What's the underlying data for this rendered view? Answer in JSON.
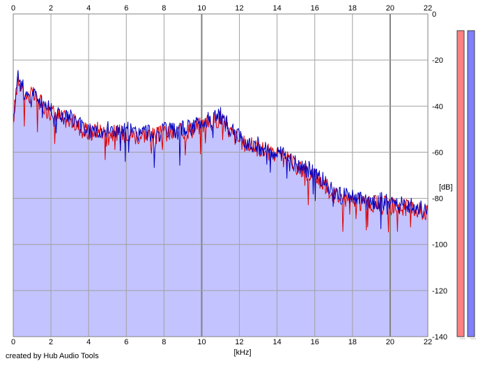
{
  "credit": "created by Hub Audio Tools",
  "chart_data": {
    "type": "area",
    "xlabel": "[kHz]",
    "ylabel": "[dB]",
    "xlim": [
      0,
      22
    ],
    "ylim": [
      -140,
      0
    ],
    "x_ticks": [
      0,
      2,
      4,
      6,
      8,
      10,
      12,
      14,
      16,
      18,
      20,
      22
    ],
    "y_ticks": [
      0,
      -20,
      -40,
      -60,
      -80,
      -100,
      -120,
      -140
    ],
    "grid": true,
    "colors": {
      "fill": "#c3c3ff",
      "series_a": "#e00000",
      "series_b": "#0000c0",
      "grid": "#a0a0a0",
      "grid_strong": "#808080",
      "meter_left": "#ff8080",
      "meter_right": "#8080ff"
    },
    "x": [
      0,
      0.25,
      0.5,
      0.75,
      1,
      1.5,
      2,
      2.5,
      3,
      3.5,
      4,
      4.5,
      5,
      5.5,
      6,
      6.5,
      7,
      7.5,
      8,
      8.5,
      9,
      9.5,
      10,
      10.5,
      11,
      11.5,
      12,
      12.5,
      13,
      13.5,
      14,
      14.5,
      15,
      15.5,
      16,
      16.5,
      17,
      17.5,
      18,
      18.5,
      19,
      19.5,
      20,
      20.5,
      21,
      21.5,
      22
    ],
    "series": [
      {
        "values": [
          -46,
          -27,
          -33,
          -36,
          -35,
          -39,
          -42,
          -45,
          -46,
          -49,
          -52,
          -50,
          -51,
          -52,
          -51,
          -53,
          -52,
          -53,
          -52,
          -52,
          -51,
          -50,
          -48,
          -47,
          -45,
          -51,
          -55,
          -57,
          -58,
          -60,
          -62,
          -63,
          -66,
          -68,
          -70,
          -74,
          -78,
          -80,
          -81,
          -82,
          -83,
          -82,
          -83,
          -84,
          -84,
          -85,
          -86
        ]
      },
      {
        "values": [
          -45,
          -26,
          -32,
          -35,
          -34,
          -38,
          -41,
          -44,
          -45,
          -48,
          -51,
          -50,
          -50,
          -51,
          -50,
          -52,
          -51,
          -52,
          -51,
          -51,
          -50,
          -49,
          -47,
          -46,
          -44,
          -50,
          -54,
          -56,
          -57,
          -59,
          -61,
          -62,
          -65,
          -67,
          -69,
          -73,
          -77,
          -79,
          -80,
          -81,
          -82,
          -81,
          -82,
          -83,
          -83,
          -84,
          -85
        ]
      }
    ],
    "meters": {
      "left": -7,
      "right": -7
    }
  }
}
